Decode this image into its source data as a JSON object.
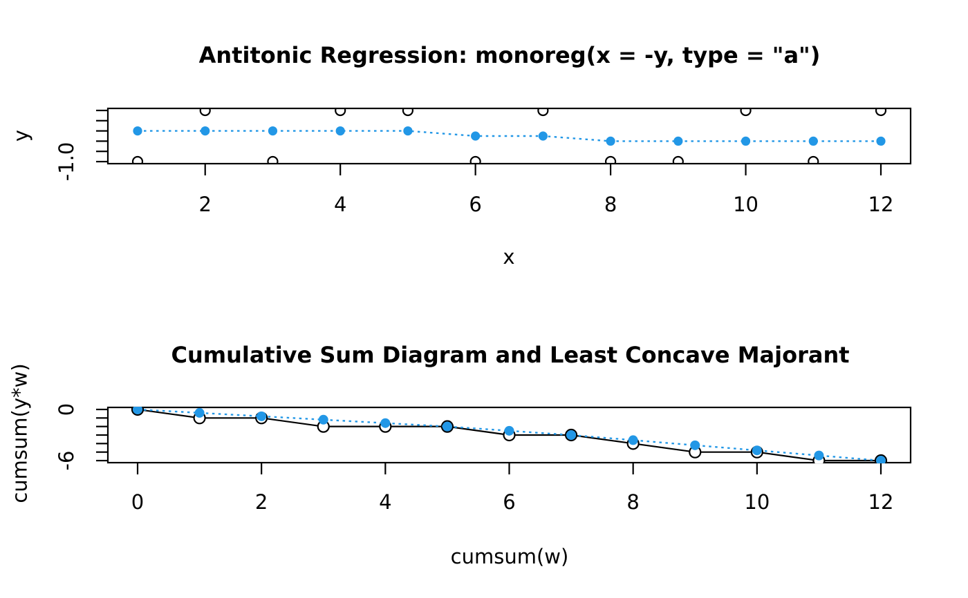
{
  "figure": {
    "background": "#ffffff",
    "axis_color": "#000000",
    "accent_blue": "#2297E6",
    "point_fill_white": "#ffffff"
  },
  "chart_data": [
    {
      "id": "antitonic-regression",
      "type": "scatter",
      "title": "Antitonic Regression: monoreg(x = -y, type = \"a\")",
      "xlabel": "x",
      "ylabel": "y",
      "x": [
        1,
        2,
        3,
        4,
        5,
        6,
        7,
        8,
        9,
        10,
        11,
        12
      ],
      "series": [
        {
          "name": "observations",
          "marker": "open-circle",
          "line": "none",
          "color": "#000000",
          "values": [
            -1,
            0,
            -1,
            0,
            0,
            -1,
            0,
            -1,
            -1,
            0,
            -1,
            0
          ]
        },
        {
          "name": "antitonic-fit",
          "marker": "filled-dot",
          "line": "dotted",
          "color": "#2297E6",
          "values": [
            -0.4,
            -0.4,
            -0.4,
            -0.4,
            -0.4,
            -0.5,
            -0.5,
            -0.6,
            -0.6,
            -0.6,
            -0.6,
            -0.6
          ]
        }
      ],
      "x_ticks": [
        2,
        4,
        6,
        8,
        10,
        12
      ],
      "x_tick_labels": [
        "2",
        "4",
        "6",
        "8",
        "10",
        "12"
      ],
      "y_ticks": [
        0,
        -0.2,
        -0.4,
        -0.6,
        -0.8,
        -1.0
      ],
      "y_tick_labels": [
        "",
        "",
        "",
        "",
        "",
        "-1.0"
      ],
      "xlim": [
        0.56,
        12.44
      ],
      "ylim": [
        -1.04,
        0.04
      ],
      "grid": false,
      "legend": "none"
    },
    {
      "id": "csd-lcm",
      "type": "line",
      "title": "Cumulative Sum Diagram and Least Concave Majorant",
      "xlabel": "cumsum(w)",
      "ylabel": "cumsum(y*w)",
      "x": [
        0,
        1,
        2,
        3,
        4,
        5,
        6,
        7,
        8,
        9,
        10,
        11,
        12
      ],
      "series": [
        {
          "name": "cumulative-sum-diagram",
          "marker": "open-circle-white",
          "line": "solid",
          "color": "#000000",
          "values": [
            0,
            -1,
            -1,
            -2,
            -2,
            -2,
            -3,
            -3,
            -4,
            -5,
            -5,
            -6,
            -6
          ]
        },
        {
          "name": "least-concave-majorant",
          "marker": "filled-dot",
          "line": "dotted",
          "color": "#2297E6",
          "values": [
            0,
            -0.4,
            -0.8,
            -1.2,
            -1.6,
            -2,
            -2.5,
            -3,
            -3.6,
            -4.2,
            -4.8,
            -5.4,
            -6
          ]
        }
      ],
      "x_ticks": [
        0,
        2,
        4,
        6,
        8,
        10,
        12
      ],
      "x_tick_labels": [
        "0",
        "2",
        "4",
        "6",
        "8",
        "10",
        "12"
      ],
      "y_ticks": [
        0,
        -1,
        -2,
        -3,
        -4,
        -5,
        -6
      ],
      "y_tick_labels": [
        "0",
        "",
        "",
        "",
        "",
        "",
        "-6"
      ],
      "xlim": [
        -0.48,
        12.48
      ],
      "ylim": [
        -6.24,
        0.24
      ],
      "grid": false,
      "legend": "none"
    }
  ]
}
